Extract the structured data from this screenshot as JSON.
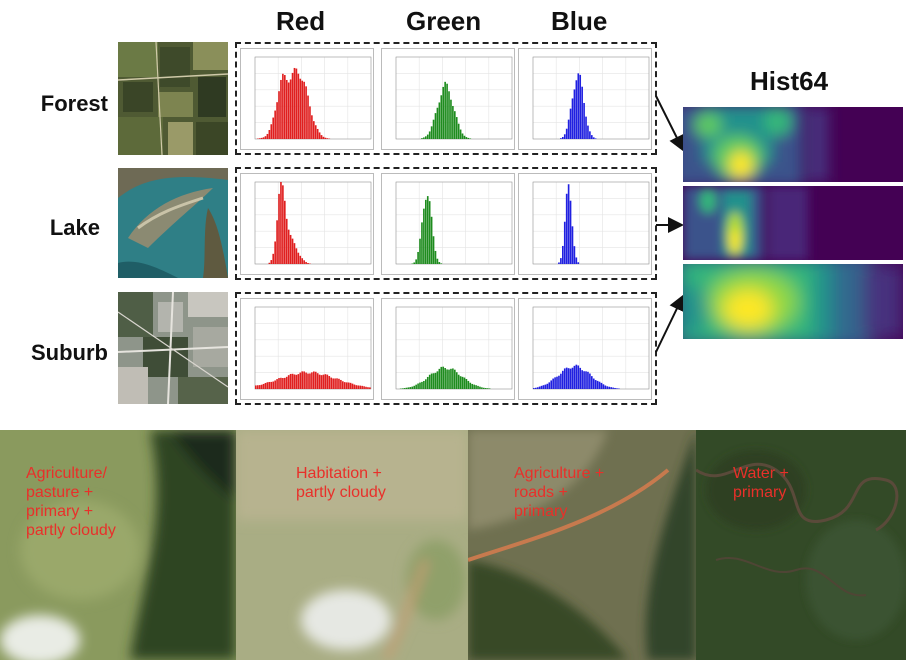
{
  "headers": {
    "channels": [
      "Red",
      "Green",
      "Blue"
    ],
    "hist": "Hist64"
  },
  "rows": [
    {
      "label": "Forest"
    },
    {
      "label": "Lake"
    },
    {
      "label": "Suburb"
    }
  ],
  "bottom_tiles": [
    {
      "caption": "Agriculture/\npasture +\nprimary +\npartly cloudy"
    },
    {
      "caption": "Habitation +\npartly cloudy"
    },
    {
      "caption": "Agriculture +\nroads +\nprimary"
    },
    {
      "caption": "Water +\nprimary"
    }
  ],
  "colors": {
    "red": "#e01f1f",
    "green": "#1e8c1e",
    "blue": "#2020e0",
    "caption": "#e8302a"
  }
}
